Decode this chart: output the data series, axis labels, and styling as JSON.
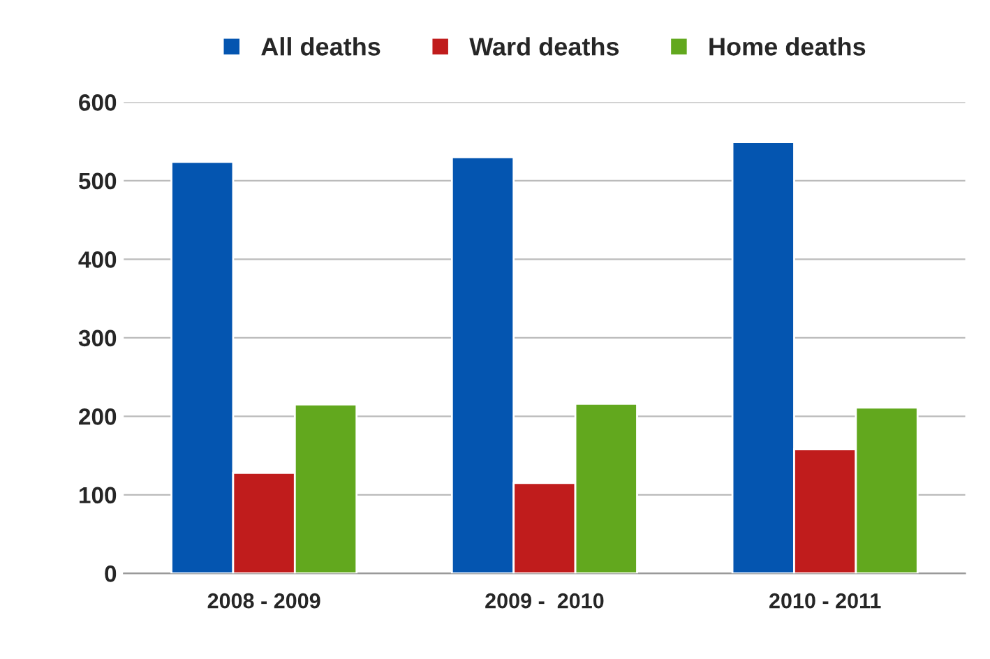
{
  "chart_data": {
    "type": "bar",
    "categories": [
      "2008 - 2009",
      "2009 -  2010",
      "2010 - 2011"
    ],
    "series": [
      {
        "name": "All deaths",
        "color": "#0455b0",
        "values": [
          524,
          530,
          549
        ]
      },
      {
        "name": "Ward deaths",
        "color": "#c01c1c",
        "values": [
          128,
          115,
          158
        ]
      },
      {
        "name": "Home deaths",
        "color": "#62a81e",
        "values": [
          215,
          216,
          211
        ]
      }
    ],
    "ylim": [
      0,
      600
    ],
    "yticks": [
      0,
      100,
      200,
      300,
      400,
      500,
      600
    ],
    "grid": "y",
    "legend": "top"
  }
}
